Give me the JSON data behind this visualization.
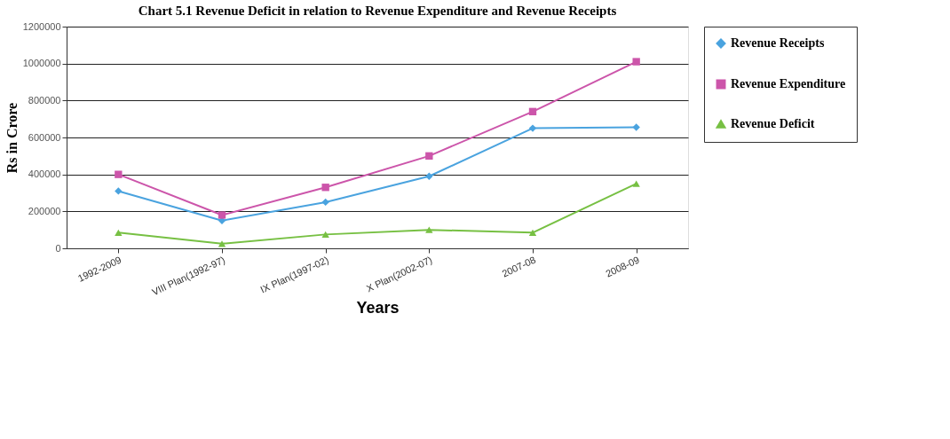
{
  "chart_data": {
    "type": "line",
    "title": "Chart 5.1 Revenue Deficit in relation to Revenue Expenditure and Revenue Receipts",
    "xlabel": "Years",
    "ylabel": "Rs in Crore",
    "categories": [
      "1992-2009",
      "VIII Plan(1992-97)",
      "IX Plan(1997-02)",
      "X Plan(2002-07)",
      "2007-08",
      "2008-09"
    ],
    "series": [
      {
        "name": "Revenue Receipts",
        "color": "#4aa3df",
        "marker": "diamond",
        "values": [
          310000,
          150000,
          250000,
          390000,
          650000,
          655000
        ]
      },
      {
        "name": "Revenue Expenditure",
        "color": "#cc55aa",
        "marker": "square",
        "values": [
          400000,
          180000,
          330000,
          500000,
          740000,
          1010000
        ]
      },
      {
        "name": "Revenue Deficit",
        "color": "#77c043",
        "marker": "triangle",
        "values": [
          85000,
          25000,
          75000,
          100000,
          85000,
          350000
        ]
      }
    ],
    "ylim": [
      0,
      1200000
    ],
    "yticks": [
      0,
      200000,
      400000,
      600000,
      800000,
      1000000,
      1200000
    ],
    "grid": "y",
    "legend": "right",
    "line_style": "solid"
  }
}
